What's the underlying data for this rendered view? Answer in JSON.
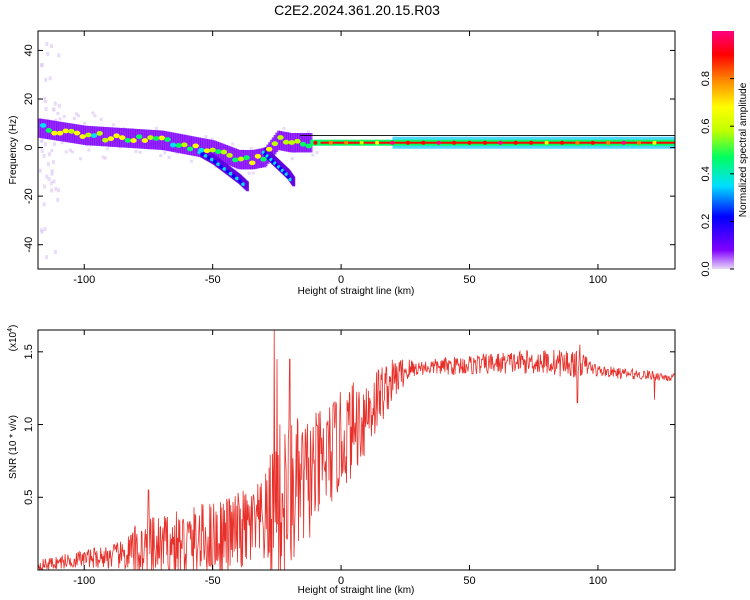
{
  "title": "C2E2.2024.361.20.15.R03",
  "chart_data": [
    {
      "type": "heatmap",
      "name": "spectrogram",
      "xlabel": "Height of straight line (km)",
      "ylabel": "Frequency (Hz)",
      "xlim": [
        -118,
        130
      ],
      "ylim": [
        -50,
        48
      ],
      "xticks": [
        -100,
        -50,
        0,
        50,
        100
      ],
      "yticks": [
        -40,
        -20,
        0,
        20,
        40
      ],
      "colorbar": {
        "label": "Normalized spectral amplitude",
        "range": [
          0.0,
          1.0
        ],
        "ticks": [
          0.0,
          0.2,
          0.4,
          0.6,
          0.8
        ],
        "tick_labels": [
          "0.0",
          "0.2",
          "0.4",
          "0.6",
          "0.8"
        ],
        "colors": [
          "#e8d8f8",
          "#8000ff",
          "#0000ff",
          "#00e0ff",
          "#00ff60",
          "#c0ff00",
          "#ffff00",
          "#ff8000",
          "#ff0000",
          "#ff0080"
        ]
      },
      "ridge": {
        "x": [
          -118,
          -100,
          -85,
          -70,
          -60,
          -50,
          -45,
          -40,
          -35,
          -30,
          -25,
          -20,
          -15,
          -10,
          0,
          20,
          40,
          60,
          80,
          100,
          120,
          130
        ],
        "frequency": [
          8,
          5,
          4,
          3,
          1,
          -1,
          -3,
          -5,
          -5,
          -4,
          3,
          2,
          2,
          2,
          2,
          2,
          2,
          2,
          2,
          2,
          2,
          2
        ]
      },
      "descending_branch": {
        "x": [
          -55,
          -50,
          -45,
          -40,
          -37
        ],
        "frequency": [
          -2,
          -5,
          -9,
          -13,
          -16
        ]
      },
      "secondary_branch": {
        "x": [
          -30,
          -27,
          -24,
          -21,
          -19
        ],
        "frequency": [
          -2,
          -5,
          -8,
          -11,
          -14
        ]
      }
    },
    {
      "type": "line",
      "name": "snr",
      "xlabel": "Height of straight line (km)",
      "ylabel": "SNR (10 * v/v)",
      "y_scale_note": "(x10",
      "y_scale_exp": "4",
      "xlim": [
        -118,
        130
      ],
      "ylim": [
        0,
        1.65
      ],
      "xticks": [
        -100,
        -50,
        0,
        50,
        100
      ],
      "yticks": [
        0.5,
        1.0,
        1.5
      ],
      "ytick_labels": [
        "0.5",
        "1.0",
        "1.5"
      ],
      "line_color": "#e8302a",
      "envelope": {
        "x": [
          -118,
          -100,
          -85,
          -75,
          -60,
          -50,
          -40,
          -30,
          -25,
          -20,
          -15,
          -10,
          -5,
          0,
          5,
          10,
          15,
          20,
          25,
          30,
          40,
          50,
          60,
          70,
          80,
          90,
          95,
          100,
          110,
          120,
          130
        ],
        "y": [
          0.03,
          0.08,
          0.1,
          0.14,
          0.18,
          0.22,
          0.26,
          0.32,
          0.42,
          0.5,
          0.58,
          0.68,
          0.78,
          0.88,
          0.98,
          1.08,
          1.2,
          1.3,
          1.37,
          1.39,
          1.4,
          1.41,
          1.42,
          1.43,
          1.43,
          1.42,
          1.41,
          1.37,
          1.35,
          1.34,
          1.32
        ]
      },
      "noise": {
        "x": [
          -118,
          -100,
          -85,
          -80,
          -60,
          -40,
          -30,
          -25,
          -20,
          -10,
          0,
          10,
          20,
          30,
          50,
          70,
          90,
          100,
          130
        ],
        "amplitude": [
          0.04,
          0.06,
          0.1,
          0.2,
          0.25,
          0.28,
          0.3,
          0.6,
          0.55,
          0.4,
          0.35,
          0.3,
          0.15,
          0.05,
          0.07,
          0.08,
          0.1,
          0.04,
          0.03
        ]
      },
      "spikes": [
        {
          "x": -26,
          "y": 1.65
        },
        {
          "x": -25,
          "y": 1.45
        },
        {
          "x": -20,
          "y": 1.45
        },
        {
          "x": -75,
          "y": 0.55
        },
        {
          "x": 93,
          "y": 1.55
        },
        {
          "x": 92,
          "y": 1.15
        },
        {
          "x": 122,
          "y": 1.17
        }
      ]
    }
  ]
}
